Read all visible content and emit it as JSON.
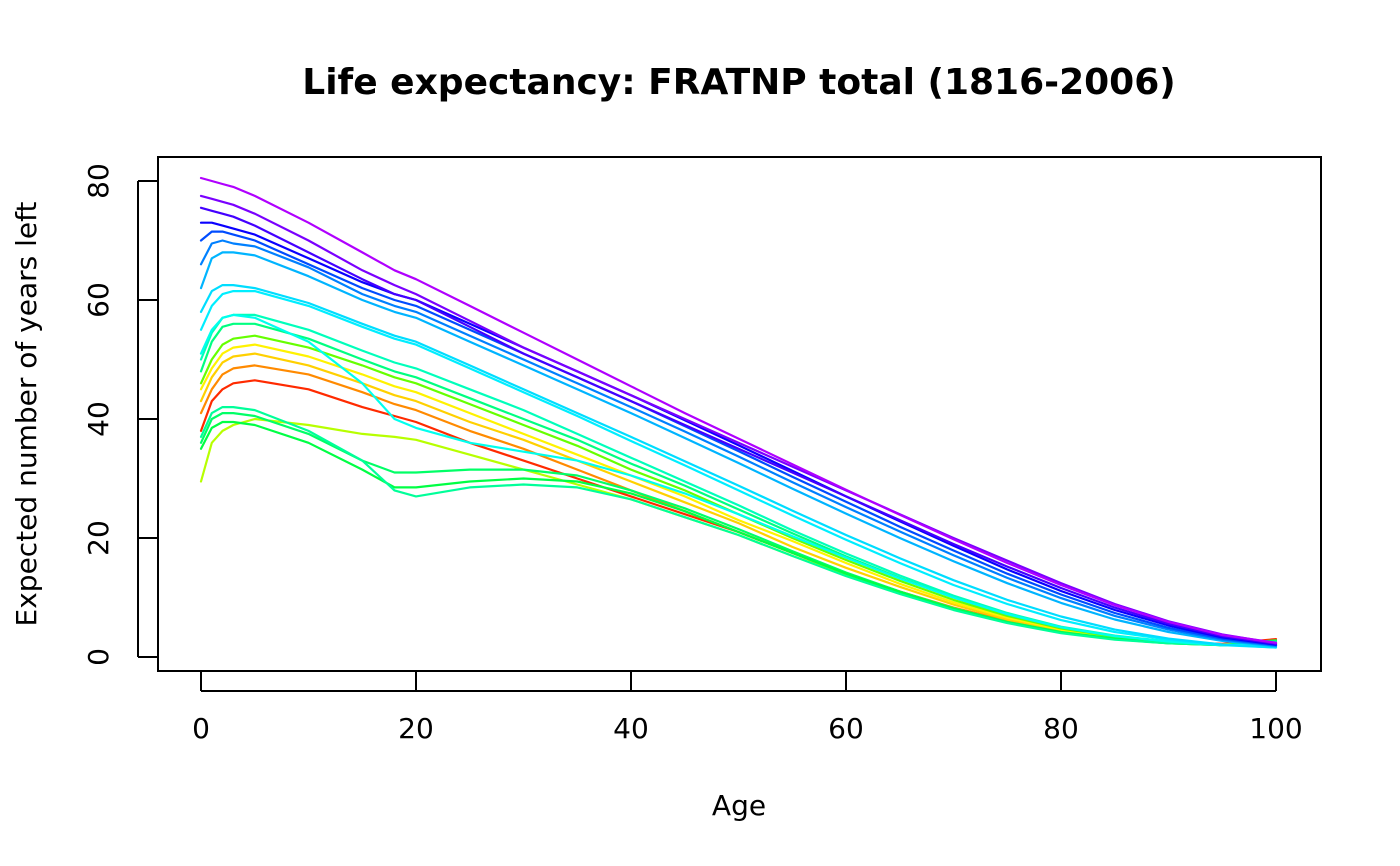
{
  "chart_data": {
    "type": "line",
    "title": "Life expectancy: FRATNP total (1816-2006)",
    "xlabel": "Age",
    "ylabel": "Expected number of years left",
    "xlim": [
      0,
      100
    ],
    "ylim": [
      0,
      80
    ],
    "x_ticks": [
      "0",
      "20",
      "40",
      "60",
      "80",
      "100"
    ],
    "y_ticks": [
      "0",
      "20",
      "40",
      "60",
      "80"
    ],
    "grid": false,
    "legend": "none",
    "x": [
      0,
      1,
      2,
      3,
      5,
      10,
      15,
      18,
      20,
      25,
      30,
      35,
      40,
      45,
      50,
      55,
      60,
      65,
      70,
      75,
      80,
      85,
      90,
      95,
      100
    ],
    "color_scheme": "rainbow",
    "series": [
      {
        "color": "#ff2a00",
        "values": [
          38,
          43,
          45,
          46,
          46.5,
          45,
          42,
          40.5,
          39.5,
          36,
          33,
          30,
          27,
          24,
          21,
          17.5,
          14,
          11,
          8.2,
          6,
          4.3,
          3.2,
          2.5,
          2.2,
          3
        ]
      },
      {
        "color": "#ff8a00",
        "values": [
          41,
          45,
          47.5,
          48.5,
          49,
          47.5,
          44.5,
          42.5,
          41.5,
          38,
          35,
          31.5,
          28,
          24.5,
          21,
          17.5,
          14,
          11,
          8.3,
          6.1,
          4.4,
          3.2,
          2.5,
          2.1,
          2.8
        ]
      },
      {
        "color": "#ffd000",
        "values": [
          43,
          47,
          49.5,
          50.5,
          51,
          49,
          46,
          44,
          43,
          39.5,
          36.5,
          33,
          29.5,
          26,
          22.5,
          18.5,
          15,
          11.8,
          8.8,
          6.3,
          4.5,
          3.3,
          2.5,
          2.1,
          2.5
        ]
      },
      {
        "color": "#fff200",
        "values": [
          45,
          48.5,
          51,
          52,
          52.5,
          50.5,
          47.5,
          45.5,
          44.5,
          41,
          37.5,
          34,
          30.5,
          27,
          23,
          19.5,
          15.8,
          12.3,
          9.2,
          6.6,
          4.6,
          3.3,
          2.5,
          2.0,
          2.3
        ]
      },
      {
        "color": "#b7ff00",
        "values": [
          29.5,
          36,
          38,
          39,
          40,
          39,
          37.5,
          37,
          36.5,
          34,
          31.5,
          29,
          26.5,
          23.5,
          20.5,
          17,
          13.8,
          10.8,
          8.0,
          5.8,
          4.1,
          3.0,
          2.3,
          2.0,
          2.0
        ]
      },
      {
        "color": "#66ff00",
        "values": [
          46,
          50,
          52.5,
          53.5,
          54,
          52,
          49,
          47,
          46,
          42.5,
          39,
          35.5,
          31.5,
          28,
          24,
          20,
          16.3,
          12.8,
          9.6,
          6.9,
          4.8,
          3.4,
          2.6,
          2.0,
          2.2
        ]
      },
      {
        "color": "#00ff66",
        "values": [
          36,
          40,
          41,
          41,
          40.5,
          37.5,
          33,
          31,
          31,
          31.5,
          31.5,
          30.5,
          28,
          25,
          21.5,
          17.8,
          14.2,
          11,
          8.2,
          5.9,
          4.2,
          3.1,
          2.4,
          2.0,
          2.5
        ]
      },
      {
        "color": "#00ff44",
        "values": [
          35,
          38.5,
          39.5,
          39.5,
          39,
          36,
          31.5,
          28.5,
          28.5,
          29.5,
          30,
          29.5,
          27.5,
          24.5,
          21,
          17.5,
          14,
          10.9,
          8.1,
          5.8,
          4.1,
          3.0,
          2.3,
          2.0,
          2.8
        ]
      },
      {
        "color": "#00ff99",
        "values": [
          37,
          41,
          42,
          42,
          41.5,
          38,
          33,
          28,
          27,
          28.5,
          29,
          28.5,
          26.5,
          23.5,
          20.5,
          17,
          13.6,
          10.6,
          7.9,
          5.7,
          4.0,
          2.9,
          2.3,
          2.0,
          2.6
        ]
      },
      {
        "color": "#00ff80",
        "values": [
          48,
          53,
          55.5,
          56,
          56,
          53.5,
          50,
          48,
          47,
          43.5,
          40,
          36.5,
          32.5,
          28.8,
          24.8,
          20.8,
          16.9,
          13.3,
          10,
          7.2,
          5.0,
          3.5,
          2.6,
          2.0,
          2.0
        ]
      },
      {
        "color": "#00ffbb",
        "values": [
          50,
          54.5,
          57,
          57.5,
          57.5,
          55,
          51.5,
          49.5,
          48.5,
          45,
          41.5,
          37.5,
          33.5,
          29.5,
          25.5,
          21.3,
          17.4,
          13.7,
          10.3,
          7.4,
          5.1,
          3.6,
          2.6,
          2.0,
          2.0
        ]
      },
      {
        "color": "#00ffee",
        "values": [
          51,
          55,
          57,
          57.5,
          57,
          53,
          46,
          40,
          38.5,
          36,
          34.5,
          33,
          30.5,
          27.5,
          24,
          20.3,
          16.7,
          13.2,
          10,
          7.2,
          5.0,
          3.5,
          2.6,
          2.0,
          2.0
        ]
      },
      {
        "color": "#00eeff",
        "values": [
          55,
          59,
          61,
          61.5,
          61.5,
          59,
          55.5,
          53.5,
          52.5,
          48.5,
          44.5,
          40.5,
          36.3,
          32.2,
          28,
          23.8,
          19.7,
          15.8,
          12.1,
          8.9,
          6.2,
          4.2,
          2.9,
          2.0,
          1.6
        ]
      },
      {
        "color": "#00ddff",
        "values": [
          58,
          61.5,
          62.5,
          62.5,
          62,
          59.5,
          56,
          54,
          53,
          49,
          45,
          41,
          37,
          32.9,
          28.8,
          24.6,
          20.5,
          16.6,
          12.9,
          9.6,
          6.8,
          4.6,
          3.1,
          2.1,
          1.6
        ]
      },
      {
        "color": "#00b4ff",
        "values": [
          62,
          67,
          68,
          68,
          67.5,
          64,
          60,
          58,
          57,
          53,
          49,
          45,
          41,
          36.8,
          32.6,
          28.3,
          24.1,
          20,
          16.1,
          12.4,
          9.1,
          6.3,
          4.2,
          2.7,
          1.8
        ]
      },
      {
        "color": "#0080ff",
        "values": [
          66,
          69.5,
          70,
          69.5,
          69,
          65.5,
          61,
          59,
          58,
          54,
          50,
          46,
          42,
          37.9,
          33.7,
          29.4,
          25.2,
          21.1,
          17.1,
          13.3,
          9.9,
          6.9,
          4.6,
          2.9,
          1.9
        ]
      },
      {
        "color": "#004cff",
        "values": [
          70,
          71.5,
          71.5,
          71,
          70,
          66,
          62,
          60,
          59,
          55,
          51,
          47,
          43,
          38.8,
          34.6,
          30.3,
          26.1,
          21.9,
          17.9,
          14,
          10.5,
          7.4,
          4.9,
          3.1,
          2.0
        ]
      },
      {
        "color": "#0a00ff",
        "values": [
          73,
          73,
          72.5,
          72,
          71,
          67,
          63,
          61,
          60,
          56,
          52,
          48,
          44,
          39.8,
          35.6,
          31.3,
          27,
          22.8,
          18.7,
          14.7,
          11.1,
          7.9,
          5.3,
          3.3,
          2.1
        ]
      },
      {
        "color": "#4400ff",
        "values": [
          75.5,
          75,
          74.5,
          74,
          72.5,
          68,
          63.5,
          61,
          60,
          55.5,
          51,
          47,
          43,
          39,
          35,
          31,
          27,
          23,
          19,
          15.2,
          11.6,
          8.3,
          5.6,
          3.5,
          2.2
        ]
      },
      {
        "color": "#7a00ff",
        "values": [
          77.5,
          77,
          76.5,
          76,
          74.5,
          70,
          65,
          62.5,
          61,
          56.5,
          52,
          48,
          44,
          40,
          36,
          32,
          28,
          24,
          20,
          16.2,
          12.4,
          8.9,
          6.0,
          3.8,
          2.3
        ]
      },
      {
        "color": "#b000ff",
        "values": [
          80.5,
          80,
          79.5,
          79,
          77.5,
          73,
          68,
          65,
          63.5,
          59,
          54.5,
          50,
          45.5,
          41,
          36.7,
          32.4,
          28.1,
          23.9,
          19.8,
          15.8,
          12.1,
          8.7,
          5.9,
          3.7,
          2.4
        ]
      }
    ]
  }
}
